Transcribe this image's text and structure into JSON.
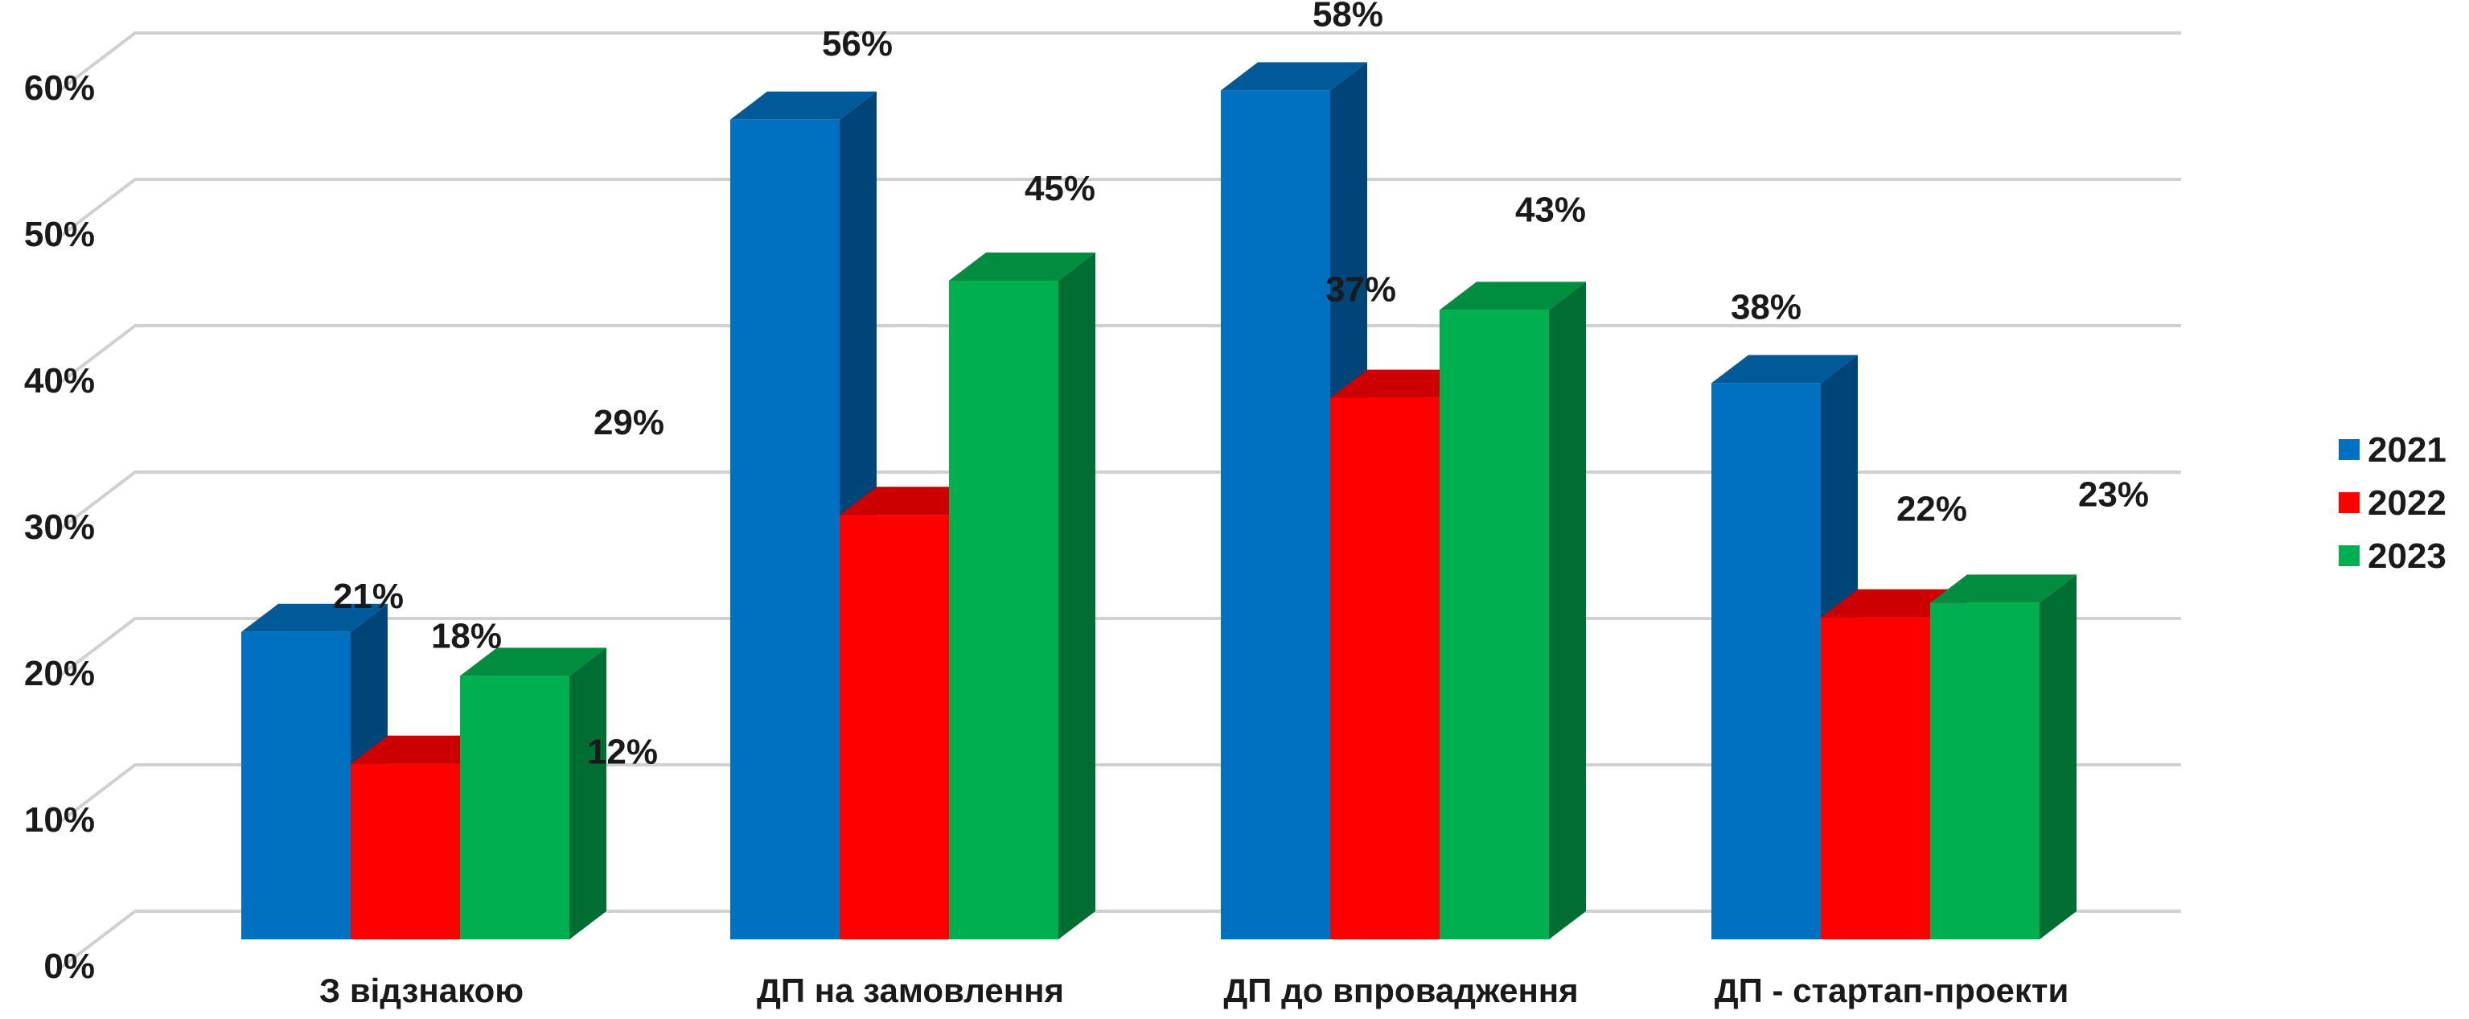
{
  "chart_data": {
    "type": "bar",
    "title": "",
    "xlabel": "",
    "ylabel": "",
    "categories": [
      "З відзнакою",
      "ДП на замовлення",
      "ДП до впровадження",
      "ДП - стартап-проекти"
    ],
    "ylim": [
      0,
      60
    ],
    "yticks": [
      0,
      10,
      20,
      30,
      40,
      50,
      60
    ],
    "ytick_suffix": "%",
    "grid": true,
    "legend_position": "right",
    "series": [
      {
        "name": "2021",
        "color": "#0070C0",
        "values": [
          21,
          56,
          58,
          38
        ]
      },
      {
        "name": "2022",
        "color": "#FF0000",
        "values": [
          12,
          29,
          37,
          22
        ]
      },
      {
        "name": "2023",
        "color": "#00B050",
        "values": [
          18,
          45,
          43,
          23
        ]
      }
    ],
    "data_labels": [
      [
        "21%",
        "56%",
        "58%",
        "38%"
      ],
      [
        "12%",
        "29%",
        "37%",
        "22%"
      ],
      [
        "18%",
        "45%",
        "43%",
        "23%"
      ]
    ]
  }
}
